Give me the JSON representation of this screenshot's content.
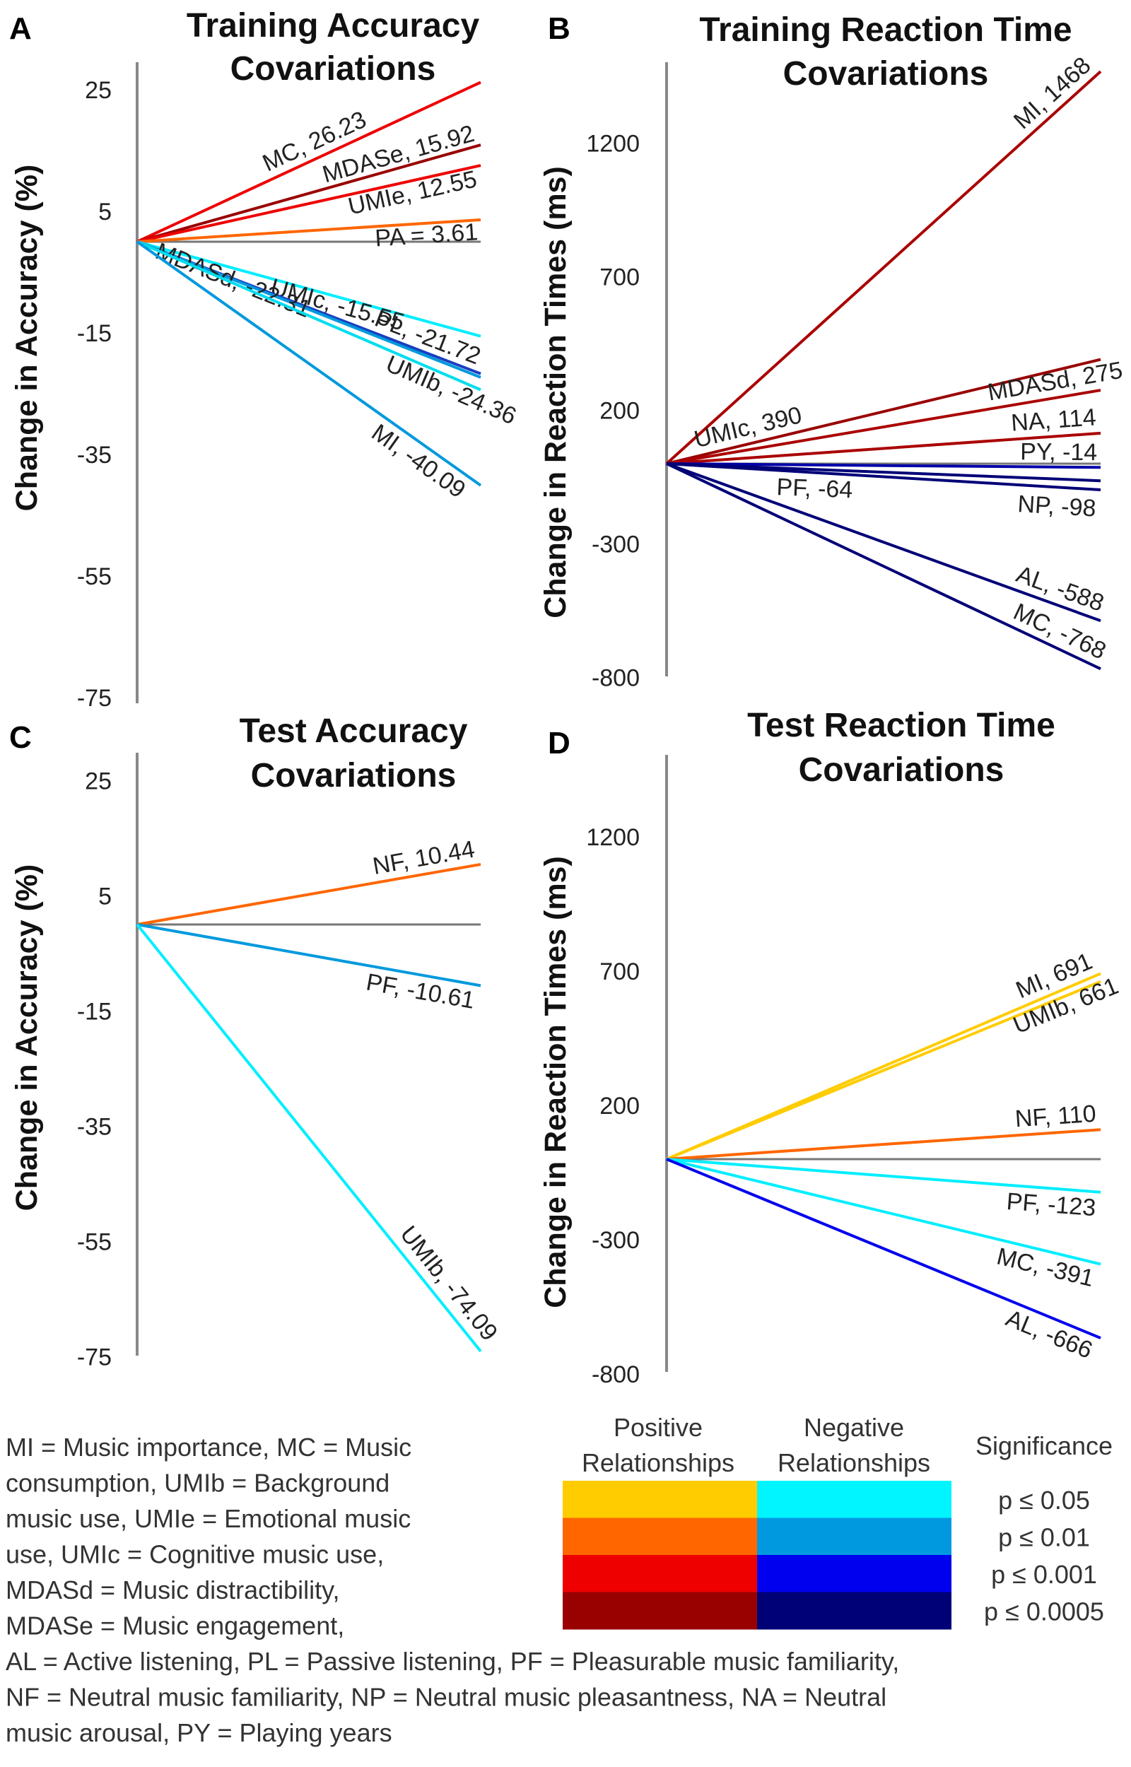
{
  "chart_data": [
    {
      "panel": "A",
      "type": "line",
      "title": [
        "Training Accuracy",
        "Covariations"
      ],
      "ylabel": "Change in Accuracy (%)",
      "yticks": [
        "25",
        "5",
        "-15",
        "-35",
        "-55",
        "-75"
      ],
      "ytick_values": [
        25,
        5,
        -15,
        -35,
        -55,
        -75
      ],
      "zero_value": 0,
      "series": [
        {
          "name": "MC",
          "value": 26.23,
          "label": "MC, 26.23",
          "color": "#ee0000"
        },
        {
          "name": "MDASe",
          "value": 15.92,
          "label": "MDASe, 15.92",
          "color": "#990000"
        },
        {
          "name": "UMIe",
          "value": 12.55,
          "label": "UMIe,  12.55",
          "color": "#ee0000"
        },
        {
          "name": "PA",
          "value": 3.61,
          "label": "PA = 3.61",
          "color": "#ff6600"
        },
        {
          "name": "UMIc",
          "value": -15.55,
          "label": "UMIc, -15.55",
          "color": "#00eeff"
        },
        {
          "name": "PL",
          "value": -21.72,
          "label": "PL, -21.72",
          "color": "#1a3fbf"
        },
        {
          "name": "MDASd",
          "value": -22.31,
          "label": "MDASd, -22.31",
          "color": "#0099dd"
        },
        {
          "name": "UMIb",
          "value": -24.36,
          "label": "UMIb, -24.36",
          "color": "#00ddee"
        },
        {
          "name": "MI",
          "value": -40.09,
          "label": "MI, -40.09",
          "color": "#0099dd"
        }
      ]
    },
    {
      "panel": "B",
      "type": "line",
      "title": [
        "Training Reaction Time",
        "Covariations"
      ],
      "ylabel": "Change in Reaction Times (ms)",
      "yticks": [
        "1200",
        "700",
        "200",
        "-300",
        "-800"
      ],
      "ytick_values": [
        1200,
        700,
        200,
        -300,
        -800
      ],
      "zero_value": 0,
      "series": [
        {
          "name": "MI",
          "value": 1468,
          "label": "MI, 1468",
          "color": "#aa0000"
        },
        {
          "name": "UMIc",
          "value": 390,
          "label": "UMIc, 390",
          "color": "#990000"
        },
        {
          "name": "MDASd",
          "value": 275,
          "label": "MDASd, 275",
          "color": "#aa0000"
        },
        {
          "name": "NA",
          "value": 114,
          "label": "NA, 114",
          "color": "#aa0000"
        },
        {
          "name": "PY",
          "value": -14,
          "label": "PY, -14",
          "color": "#0000aa"
        },
        {
          "name": "PF",
          "value": -64,
          "label": "PF, -64",
          "color": "#000077"
        },
        {
          "name": "NP",
          "value": -98,
          "label": "NP, -98",
          "color": "#000077"
        },
        {
          "name": "AL",
          "value": -588,
          "label": "AL, -588",
          "color": "#000077"
        },
        {
          "name": "MC",
          "value": -768,
          "label": "MC, -768",
          "color": "#000077"
        }
      ]
    },
    {
      "panel": "C",
      "type": "line",
      "title": [
        "Test Accuracy",
        "Covariations"
      ],
      "ylabel": "Change in Accuracy (%)",
      "yticks": [
        "25",
        "5",
        "-15",
        "-35",
        "-55",
        "-75"
      ],
      "ytick_values": [
        25,
        5,
        -15,
        -35,
        -55,
        -75
      ],
      "zero_value": 0,
      "series": [
        {
          "name": "NF",
          "value": 10.44,
          "label": "NF, 10.44",
          "color": "#ff6600"
        },
        {
          "name": "PF",
          "value": -10.61,
          "label": "PF, -10.61",
          "color": "#0099dd"
        },
        {
          "name": "UMIb",
          "value": -74.09,
          "label": "UMIb, -74.09",
          "color": "#00eeff"
        }
      ]
    },
    {
      "panel": "D",
      "type": "line",
      "title": [
        "Test Reaction Time",
        "Covariations"
      ],
      "ylabel": "Change in Reaction Times (ms)",
      "yticks": [
        "1200",
        "700",
        "200",
        "-300",
        "-800"
      ],
      "ytick_values": [
        1200,
        700,
        200,
        -300,
        -800
      ],
      "zero_value": 0,
      "series": [
        {
          "name": "MI",
          "value": 691,
          "label": "MI, 691",
          "color": "#ffcc00"
        },
        {
          "name": "UMIb",
          "value": 661,
          "label": "UMIb, 661",
          "color": "#ffcc00"
        },
        {
          "name": "NF",
          "value": 110,
          "label": "NF, 110",
          "color": "#ff6600"
        },
        {
          "name": "PF",
          "value": -123,
          "label": "PF, -123",
          "color": "#00eeff"
        },
        {
          "name": "MC",
          "value": -391,
          "label": "MC, -391",
          "color": "#00eeff"
        },
        {
          "name": "AL",
          "value": -666,
          "label": "AL, -666",
          "color": "#0000ee"
        }
      ]
    }
  ],
  "abbreviations": [
    "MI = Music importance, MC = Music",
    "consumption, UMIb = Background",
    "music use, UMIe = Emotional music",
    "use, UMIc  = Cognitive music use,",
    "MDASd = Music distractibility,",
    "MDASe = Music engagement,",
    "AL = Active listening, PL = Passive listening, PF = Pleasurable music familiarity,",
    "NF = Neutral music familiarity, NP = Neutral music pleasantness, NA = Neutral",
    "music arousal, PY = Playing years"
  ],
  "legend": {
    "positive_header": [
      "Positive",
      "Relationships"
    ],
    "negative_header": [
      "Negative",
      "Relationships"
    ],
    "significance_header": "Significance",
    "levels": [
      {
        "label": "p ≤ 0.05",
        "positive": "#ffcc00",
        "negative": "#00f5ff"
      },
      {
        "label": "p ≤ 0.01",
        "positive": "#ff6600",
        "negative": "#0099e0"
      },
      {
        "label": "p ≤ 0.001",
        "positive": "#ee0000",
        "negative": "#0000ee"
      },
      {
        "label": "p ≤ 0.0005",
        "positive": "#990000",
        "negative": "#000077"
      }
    ]
  }
}
